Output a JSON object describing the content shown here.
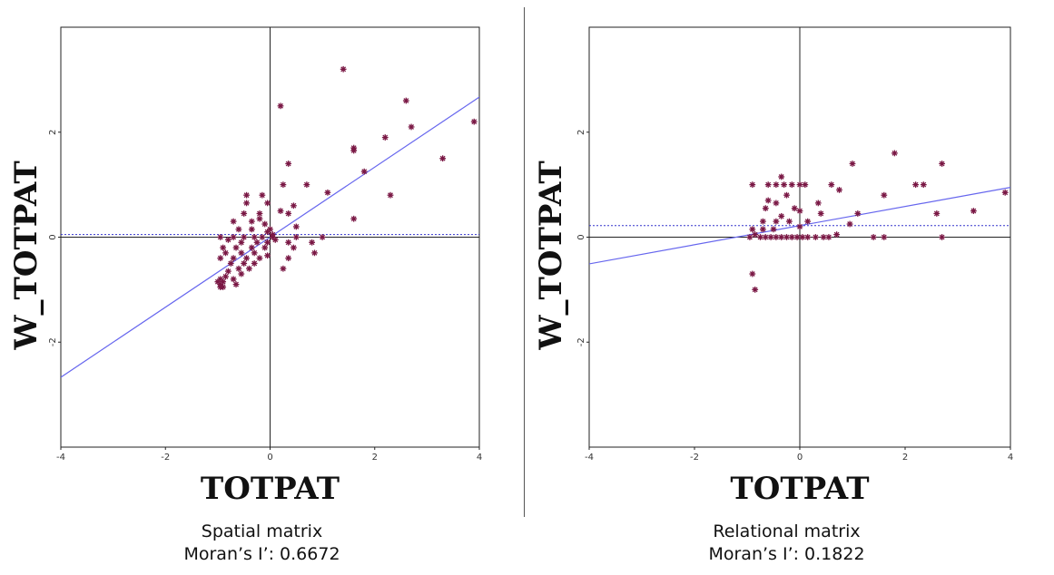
{
  "chart_data": [
    {
      "type": "scatter",
      "title": "Spatial matrix",
      "statistic_label": "Moran’s I’: 0.6672",
      "xlabel": "TOTPAT",
      "ylabel": "W_TOTPAT",
      "xlim": [
        -4,
        4
      ],
      "ylim": [
        -4,
        4
      ],
      "xticks": [
        "-4",
        "-2",
        "0",
        "2",
        "4"
      ],
      "yticks": [
        "2",
        "0",
        "-2"
      ],
      "grid": false,
      "regression_line": {
        "slope": 0.6672,
        "intercept": 0
      },
      "mean_line_y": 0.05,
      "points": [
        [
          1.4,
          3.2
        ],
        [
          0.2,
          2.5
        ],
        [
          2.6,
          2.6
        ],
        [
          2.7,
          2.1
        ],
        [
          3.9,
          2.2
        ],
        [
          2.2,
          1.9
        ],
        [
          1.6,
          1.7
        ],
        [
          1.6,
          1.65
        ],
        [
          3.3,
          1.5
        ],
        [
          0.35,
          1.4
        ],
        [
          1.8,
          1.25
        ],
        [
          0.25,
          1.0
        ],
        [
          0.7,
          1.0
        ],
        [
          1.1,
          0.85
        ],
        [
          2.3,
          0.8
        ],
        [
          -0.45,
          0.8
        ],
        [
          -0.15,
          0.8
        ],
        [
          -0.45,
          0.65
        ],
        [
          -0.05,
          0.65
        ],
        [
          0.45,
          0.6
        ],
        [
          0.2,
          0.5
        ],
        [
          -0.5,
          0.45
        ],
        [
          -0.2,
          0.45
        ],
        [
          0.35,
          0.45
        ],
        [
          1.6,
          0.35
        ],
        [
          -0.7,
          0.3
        ],
        [
          -0.35,
          0.3
        ],
        [
          -0.2,
          0.35
        ],
        [
          -0.1,
          0.25
        ],
        [
          0.5,
          0.2
        ],
        [
          -0.6,
          0.15
        ],
        [
          -0.35,
          0.15
        ],
        [
          -0.05,
          0.1
        ],
        [
          0.0,
          0.15
        ],
        [
          0.05,
          0.05
        ],
        [
          -0.95,
          0.0
        ],
        [
          -0.7,
          0.0
        ],
        [
          -0.5,
          0.0
        ],
        [
          -0.3,
          0.0
        ],
        [
          -0.15,
          0.0
        ],
        [
          0.05,
          0.0
        ],
        [
          0.1,
          -0.05
        ],
        [
          0.5,
          0.0
        ],
        [
          1.0,
          0.0
        ],
        [
          -0.8,
          -0.05
        ],
        [
          -0.55,
          -0.1
        ],
        [
          -0.25,
          -0.1
        ],
        [
          -0.05,
          -0.1
        ],
        [
          0.35,
          -0.1
        ],
        [
          0.8,
          -0.1
        ],
        [
          -0.9,
          -0.2
        ],
        [
          -0.65,
          -0.2
        ],
        [
          -0.35,
          -0.2
        ],
        [
          -0.1,
          -0.2
        ],
        [
          0.45,
          -0.2
        ],
        [
          -0.85,
          -0.3
        ],
        [
          -0.55,
          -0.3
        ],
        [
          -0.3,
          -0.3
        ],
        [
          -0.05,
          -0.35
        ],
        [
          0.85,
          -0.3
        ],
        [
          -0.95,
          -0.4
        ],
        [
          -0.7,
          -0.4
        ],
        [
          -0.45,
          -0.4
        ],
        [
          -0.2,
          -0.4
        ],
        [
          0.35,
          -0.4
        ],
        [
          -0.75,
          -0.5
        ],
        [
          -0.5,
          -0.5
        ],
        [
          -0.3,
          -0.5
        ],
        [
          -0.6,
          -0.6
        ],
        [
          -0.4,
          -0.6
        ],
        [
          -0.8,
          -0.65
        ],
        [
          -0.55,
          -0.7
        ],
        [
          0.25,
          -0.6
        ],
        [
          -0.95,
          -0.8
        ],
        [
          -0.7,
          -0.8
        ],
        [
          -0.9,
          -0.85
        ],
        [
          -0.95,
          -0.9
        ],
        [
          -0.9,
          -0.95
        ],
        [
          -0.95,
          -0.95
        ],
        [
          -0.65,
          -0.9
        ],
        [
          -1.0,
          -0.85
        ],
        [
          -0.85,
          -0.75
        ]
      ]
    },
    {
      "type": "scatter",
      "title": "Relational matrix",
      "statistic_label": "Moran’s I’: 0.1822",
      "xlabel": "TOTPAT",
      "ylabel": "W_TOTPAT",
      "xlim": [
        -4,
        4
      ],
      "ylim": [
        -4,
        4
      ],
      "xticks": [
        "-4",
        "-2",
        "0",
        "2",
        "4"
      ],
      "yticks": [
        "2",
        "0",
        "-2"
      ],
      "grid": false,
      "regression_line": {
        "slope": 0.1822,
        "intercept": 0.22
      },
      "mean_line_y": 0.22,
      "points": [
        [
          1.0,
          1.4
        ],
        [
          1.8,
          1.6
        ],
        [
          2.7,
          1.4
        ],
        [
          3.9,
          0.85
        ],
        [
          -0.35,
          1.15
        ],
        [
          -0.9,
          1.0
        ],
        [
          -0.6,
          1.0
        ],
        [
          -0.45,
          1.0
        ],
        [
          -0.3,
          1.0
        ],
        [
          -0.15,
          1.0
        ],
        [
          0.0,
          1.0
        ],
        [
          0.1,
          1.0
        ],
        [
          0.6,
          1.0
        ],
        [
          0.75,
          0.9
        ],
        [
          -0.25,
          0.8
        ],
        [
          -0.6,
          0.7
        ],
        [
          -0.45,
          0.65
        ],
        [
          0.35,
          0.65
        ],
        [
          1.6,
          0.8
        ],
        [
          2.2,
          1.0
        ],
        [
          2.35,
          1.0
        ],
        [
          -0.1,
          0.55
        ],
        [
          0.0,
          0.5
        ],
        [
          -0.65,
          0.55
        ],
        [
          -0.35,
          0.4
        ],
        [
          0.4,
          0.45
        ],
        [
          1.1,
          0.45
        ],
        [
          2.6,
          0.45
        ],
        [
          3.3,
          0.5
        ],
        [
          -0.7,
          0.3
        ],
        [
          -0.45,
          0.3
        ],
        [
          -0.2,
          0.3
        ],
        [
          0.15,
          0.3
        ],
        [
          0.95,
          0.25
        ],
        [
          -0.9,
          0.15
        ],
        [
          -0.7,
          0.15
        ],
        [
          -0.5,
          0.15
        ],
        [
          0.0,
          0.2
        ],
        [
          -0.85,
          0.05
        ],
        [
          -0.75,
          0.0
        ],
        [
          -0.65,
          0.0
        ],
        [
          -0.55,
          0.0
        ],
        [
          -0.45,
          0.0
        ],
        [
          -0.35,
          0.0
        ],
        [
          -0.25,
          0.0
        ],
        [
          -0.15,
          0.0
        ],
        [
          -0.05,
          0.0
        ],
        [
          0.05,
          0.0
        ],
        [
          0.15,
          0.0
        ],
        [
          0.3,
          0.0
        ],
        [
          0.45,
          0.0
        ],
        [
          0.55,
          0.0
        ],
        [
          0.7,
          0.05
        ],
        [
          1.4,
          0.0
        ],
        [
          1.6,
          0.0
        ],
        [
          2.7,
          0.0
        ],
        [
          -0.95,
          0.0
        ],
        [
          -0.9,
          -0.7
        ],
        [
          -0.85,
          -1.0
        ]
      ]
    }
  ]
}
